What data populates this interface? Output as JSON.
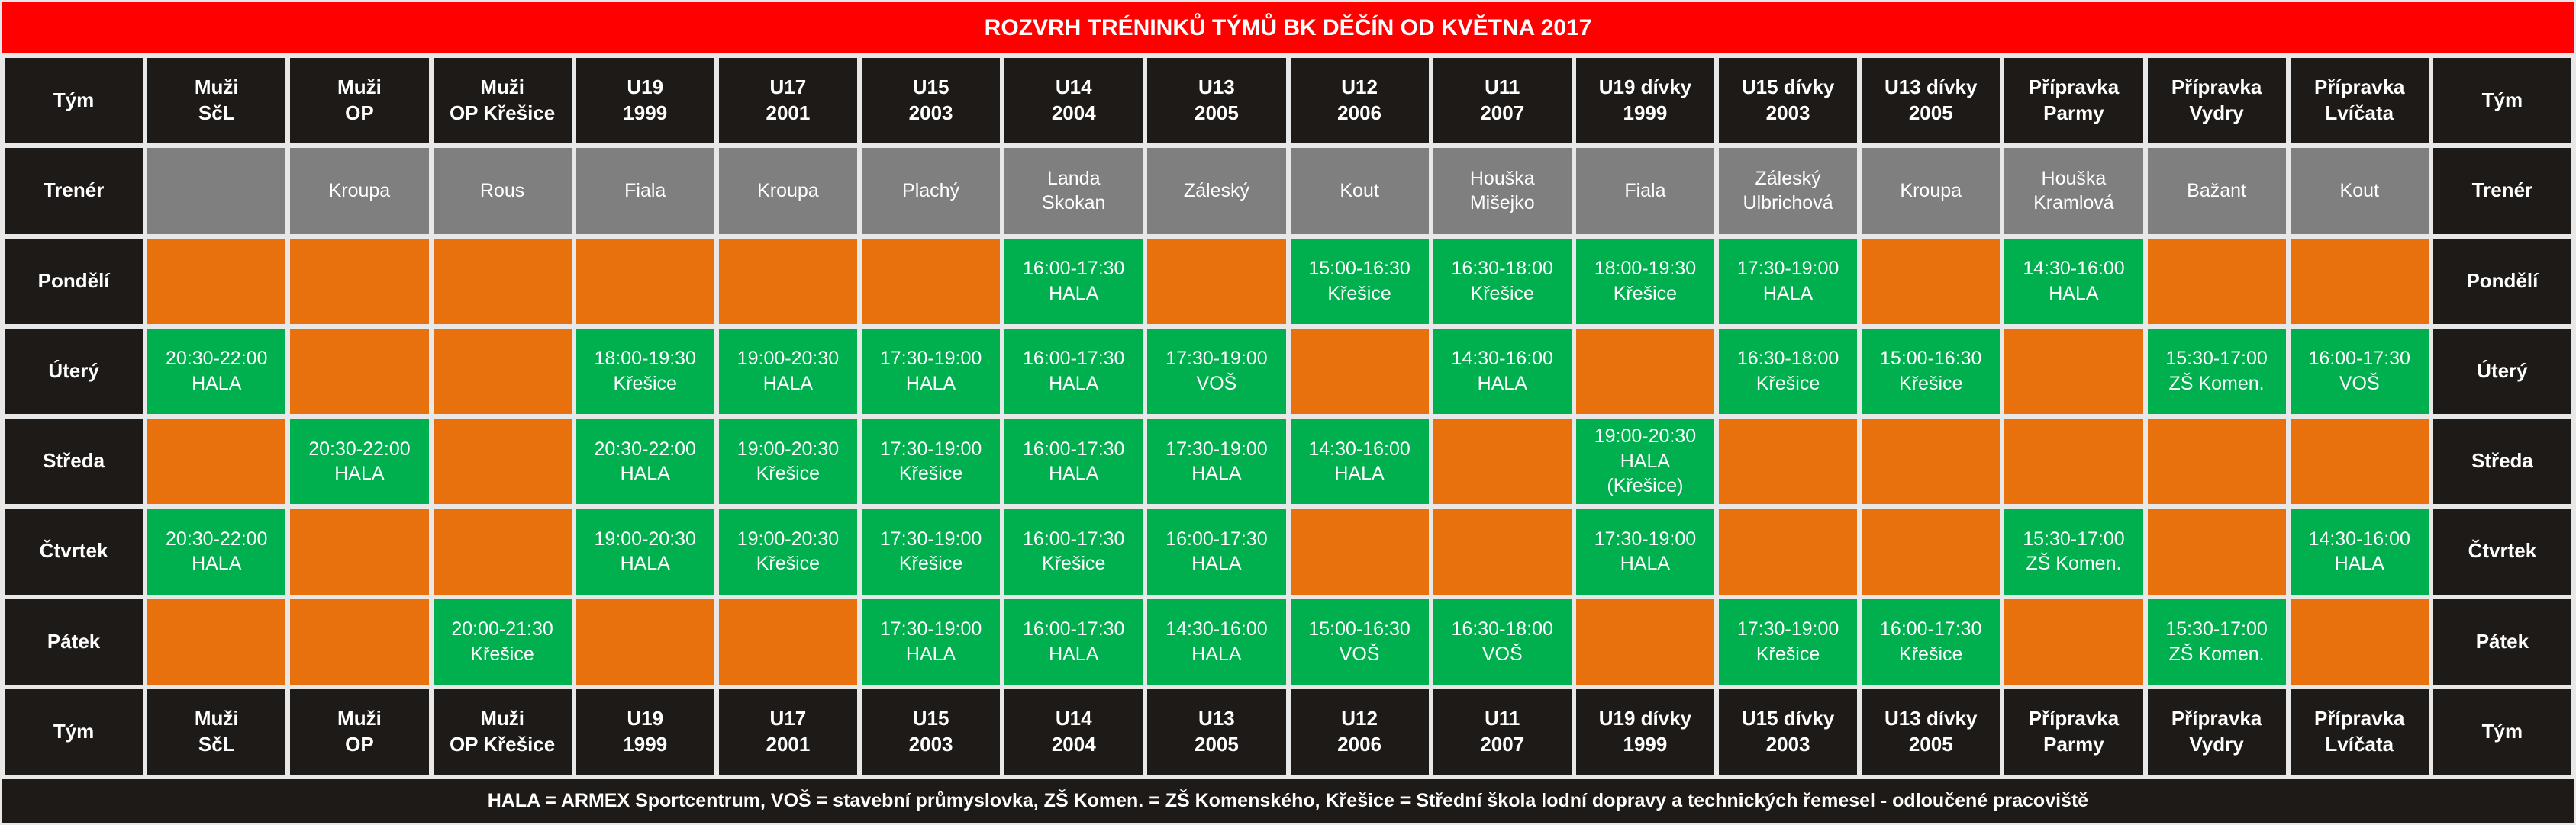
{
  "title": "ROZVRH TRÉNINKŮ TÝMŮ BK DĚČÍN OD KVĚTNA 2017",
  "header_label": "Tým",
  "coach_label": "Trenér",
  "teams": [
    "Muži\nSčL",
    "Muži\nOP",
    "Muži\nOP Křešice",
    "U19\n1999",
    "U17\n2001",
    "U15\n2003",
    "U14\n2004",
    "U13\n2005",
    "U12\n2006",
    "U11\n2007",
    "U19 dívky\n1999",
    "U15 dívky\n2003",
    "U13 dívky\n2005",
    "Přípravka\nParmy",
    "Přípravka\nVydry",
    "Přípravka\nLvíčata"
  ],
  "coaches": [
    "",
    "Kroupa",
    "Rous",
    "Fiala",
    "Kroupa",
    "Plachý",
    "Landa\nSkokan",
    "Záleský",
    "Kout",
    "Houška\nMišejko",
    "Fiala",
    "Záleský\nUlbrichová",
    "Kroupa",
    "Houška\nKramlová",
    "Bažant",
    "Kout"
  ],
  "days": [
    {
      "name": "Pondělí",
      "slots": [
        "",
        "",
        "",
        "",
        "",
        "",
        "16:00-17:30\nHALA",
        "",
        "15:00-16:30\nKřešice",
        "16:30-18:00\nKřešice",
        "18:00-19:30\nKřešice",
        "17:30-19:00\nHALA",
        "",
        "14:30-16:00\nHALA",
        "",
        ""
      ]
    },
    {
      "name": "Úterý",
      "slots": [
        "20:30-22:00\nHALA",
        "",
        "",
        "18:00-19:30\nKřešice",
        "19:00-20:30\nHALA",
        "17:30-19:00\nHALA",
        "16:00-17:30\nHALA",
        "17:30-19:00\nVOŠ",
        "",
        "14:30-16:00\nHALA",
        "",
        "16:30-18:00\nKřešice",
        "15:00-16:30\nKřešice",
        "",
        "15:30-17:00\nZŠ Komen.",
        "16:00-17:30\nVOŠ"
      ]
    },
    {
      "name": "Středa",
      "slots": [
        "",
        "20:30-22:00\nHALA",
        "",
        "20:30-22:00\nHALA",
        "19:00-20:30\nKřešice",
        "17:30-19:00\nKřešice",
        "16:00-17:30\nHALA",
        "17:30-19:00\nHALA",
        "14:30-16:00\nHALA",
        "",
        "19:00-20:30\nHALA\n(Křešice)",
        "",
        "",
        "",
        "",
        ""
      ]
    },
    {
      "name": "Čtvrtek",
      "slots": [
        "20:30-22:00\nHALA",
        "",
        "",
        "19:00-20:30\nHALA",
        "19:00-20:30\nKřešice",
        "17:30-19:00\nKřešice",
        "16:00-17:30\nKřešice",
        "16:00-17:30\nHALA",
        "",
        "",
        "17:30-19:00\nHALA",
        "",
        "",
        "15:30-17:00\nZŠ Komen.",
        "",
        "14:30-16:00\nHALA"
      ]
    },
    {
      "name": "Pátek",
      "slots": [
        "",
        "",
        "20:00-21:30\nKřešice",
        "",
        "",
        "17:30-19:00\nHALA",
        "16:00-17:30\nHALA",
        "14:30-16:00\nHALA",
        "15:00-16:30\nVOŠ",
        "16:30-18:00\nVOŠ",
        "",
        "17:30-19:00\nKřešice",
        "16:00-17:30\nKřešice",
        "",
        "15:30-17:00\nZŠ Komen.",
        ""
      ]
    }
  ],
  "legend": "HALA = ARMEX Sportcentrum, VOŠ = stavební průmyslovka, ZŠ Komen. = ZŠ Komenského, Křešice = Střední škola lodní dopravy a technických řemesel - odloučené pracoviště",
  "colors": {
    "title_bg": "#ff0000",
    "header_bg": "#1e1a17",
    "coach_bg": "#7f7f7f",
    "training_bg": "#00b04f",
    "no_training_bg": "#e8700d"
  }
}
